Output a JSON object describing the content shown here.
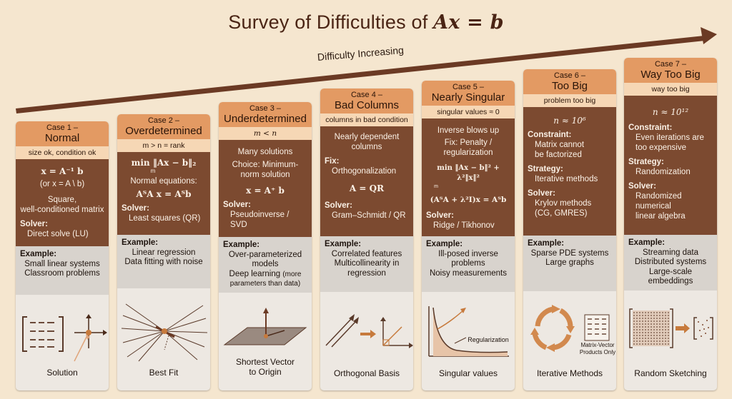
{
  "title": {
    "prefix": "Survey of Difficulties of ",
    "equation": "Ax = b"
  },
  "difficulty_label": "Difficulty Increasing",
  "cards": [
    {
      "case": "Case 1 –",
      "name": "Normal",
      "subtitle": "size ok, condition ok",
      "eq1": "x = A⁻¹ b",
      "eq2": "(or x = A \\ b)",
      "desc1": "Square,",
      "desc2": "well-conditioned matrix",
      "solver_hdr": "Solver:",
      "solver": "Direct solve (LU)",
      "ex_hdr": "Example:",
      "ex1": "Small linear systems",
      "ex2": "Classroom problems",
      "caption": "Solution"
    },
    {
      "case": "Case 2 –",
      "name": "Overdetermined",
      "subtitle": "m > n = rank",
      "eq1": "min ‖Ax − b‖₂",
      "eq1_sub": "m",
      "desc1": "Normal equations:",
      "eq2": "AᵀA x = Aᵀb",
      "solver_hdr": "Solver:",
      "solver": "Least squares (QR)",
      "ex_hdr": "Example:",
      "ex1": "Linear regression",
      "ex2": "Data fitting with noise",
      "caption": "Best Fit"
    },
    {
      "case": "Case 3 –",
      "name": "Underdetermined",
      "subtitle": "m < n",
      "desc1": "Many solutions",
      "desc2": "Choice: Minimum-",
      "desc3": "norm solution",
      "eq1": "x = A⁺ b",
      "solver_hdr": "Solver:",
      "solver": "Pseudoinverse / SVD",
      "ex_hdr": "Example:",
      "ex1": "Over-parameterized",
      "ex2": "models",
      "ex3": "Deep learning",
      "ex4": "(more",
      "ex5": "parameters than data)",
      "caption1": "Shortest Vector",
      "caption2": "to Origin"
    },
    {
      "case": "Case 4 –",
      "name": "Bad Columns",
      "subtitle": "columns in bad condition",
      "desc1": "Nearly dependent",
      "desc2": "columns",
      "fix_hdr": "Fix:",
      "fix": "Orthogonalization",
      "eq1": "A = QR",
      "solver_hdr": "Solver:",
      "solver": "Gram–Schmidt / QR",
      "ex_hdr": "Example:",
      "ex1": "Correlated features",
      "ex2": "Multicollinearity in",
      "ex3": "regression",
      "caption": "Orthogonal Basis"
    },
    {
      "case": "Case 5 –",
      "name": "Nearly Singular",
      "subtitle": "singular values ≈ 0",
      "desc1": "Inverse blows up",
      "desc2": "Fix: Penalty /",
      "desc3": "regularization",
      "eq1": "min ‖Ax − b‖² + λ²‖x‖²",
      "eq1_sub": "m",
      "eq2": "(AᵀA + λ²I)x = Aᵀb",
      "solver_hdr": "Solver:",
      "solver": "Ridge / Tikhonov",
      "ex_hdr": "Example:",
      "ex1": "Ill-posed inverse",
      "ex2": "problems",
      "ex3": "Noisy measurements",
      "img_label": "Regularization",
      "caption": "Singular values"
    },
    {
      "case": "Case 6 –",
      "name": "Too Big",
      "subtitle": "problem too big",
      "eq1": "n ≈ 10⁶",
      "constraint_hdr": "Constraint:",
      "constraint1": "Matrix cannot",
      "constraint2": "be factorized",
      "strategy_hdr": "Strategy:",
      "strategy": "Iterative methods",
      "solver_hdr": "Solver:",
      "solver1": "Krylov methods",
      "solver2": "(CG, GMRES)",
      "ex_hdr": "Example:",
      "ex1": "Sparse PDE systems",
      "ex2": "Large graphs",
      "img_label1": "Matrix-Vector",
      "img_label2": "Products Only",
      "caption": "Iterative Methods"
    },
    {
      "case": "Case 7 –",
      "name": "Way Too Big",
      "subtitle": "way too big",
      "eq1": "n ≈ 10¹²",
      "constraint_hdr": "Constraint:",
      "constraint1": "Even iterations are",
      "constraint2": "too expensive",
      "strategy_hdr": "Strategy:",
      "strategy": "Randomization",
      "solver_hdr": "Solver:",
      "solver1": "Randomized numerical",
      "solver2": "linear algebra",
      "ex_hdr": "Example:",
      "ex1": "Streaming data",
      "ex2": "Distributed systems",
      "ex3": "Large-scale embeddings",
      "caption": "Random Sketching"
    }
  ]
}
